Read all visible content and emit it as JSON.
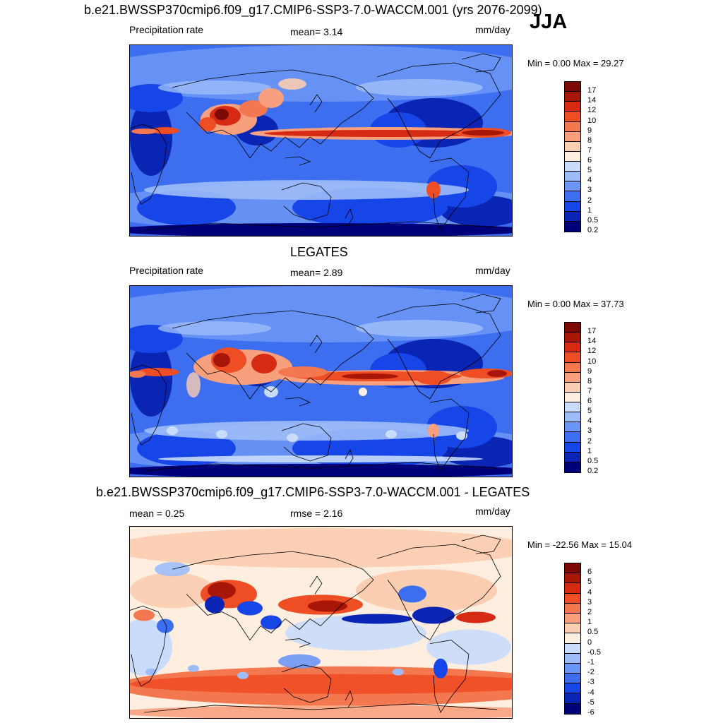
{
  "season": "JJA",
  "colors": {
    "precip": [
      "#00007a",
      "#0a24b4",
      "#1746e8",
      "#3d6ef0",
      "#6c96f5",
      "#9dbcf8",
      "#c9dcfb",
      "#fdeee0",
      "#fbcdb1",
      "#f8a07e",
      "#f4784f",
      "#ef4d24",
      "#d62a12",
      "#a81608",
      "#7a0a03"
    ],
    "diff": [
      "#00007a",
      "#0a24b4",
      "#1746e8",
      "#3d6ef0",
      "#6c96f5",
      "#9dbcf8",
      "#c9dcfb",
      "#fdeee0",
      "#fbcdb1",
      "#f8a07e",
      "#f4784f",
      "#ef4d24",
      "#d62a12",
      "#a81608",
      "#7a0a03"
    ]
  },
  "panels": [
    {
      "title": "b.e21.BWSSP370cmip6.f09_g17.CMIP6-SSP3-7.0-WACCM.001 (yrs 2076-2099)",
      "left_label": "Precipitation rate",
      "center_label": "mean=   3.14",
      "units": "mm/day",
      "minmax": "Min =   0.00 Max =  29.27",
      "colorbar_labels": [
        "17",
        "14",
        "12",
        "10",
        "9",
        "8",
        "7",
        "6",
        "5",
        "4",
        "3",
        "2",
        "1",
        "0.5",
        "0.2"
      ],
      "kind": "model"
    },
    {
      "title": "LEGATES",
      "left_label": "Precipitation rate",
      "center_label": "mean=   2.89",
      "units": "mm/day",
      "minmax": "Min =   0.00 Max =  37.73",
      "colorbar_labels": [
        "17",
        "14",
        "12",
        "10",
        "9",
        "8",
        "7",
        "6",
        "5",
        "4",
        "3",
        "2",
        "1",
        "0.5",
        "0.2"
      ],
      "kind": "obs"
    },
    {
      "title": "b.e21.BWSSP370cmip6.f09_g17.CMIP6-SSP3-7.0-WACCM.001 - LEGATES",
      "left_label": "mean =   0.25",
      "center_label": "rmse =   2.16",
      "units": "mm/day",
      "minmax": "Min = -22.56 Max =  15.04",
      "colorbar_labels": [
        "6",
        "5",
        "4",
        "3",
        "2",
        "1",
        "0.5",
        "0",
        "-0.5",
        "-1",
        "-2",
        "-3",
        "-4",
        "-5",
        "-6"
      ],
      "kind": "diff"
    }
  ]
}
